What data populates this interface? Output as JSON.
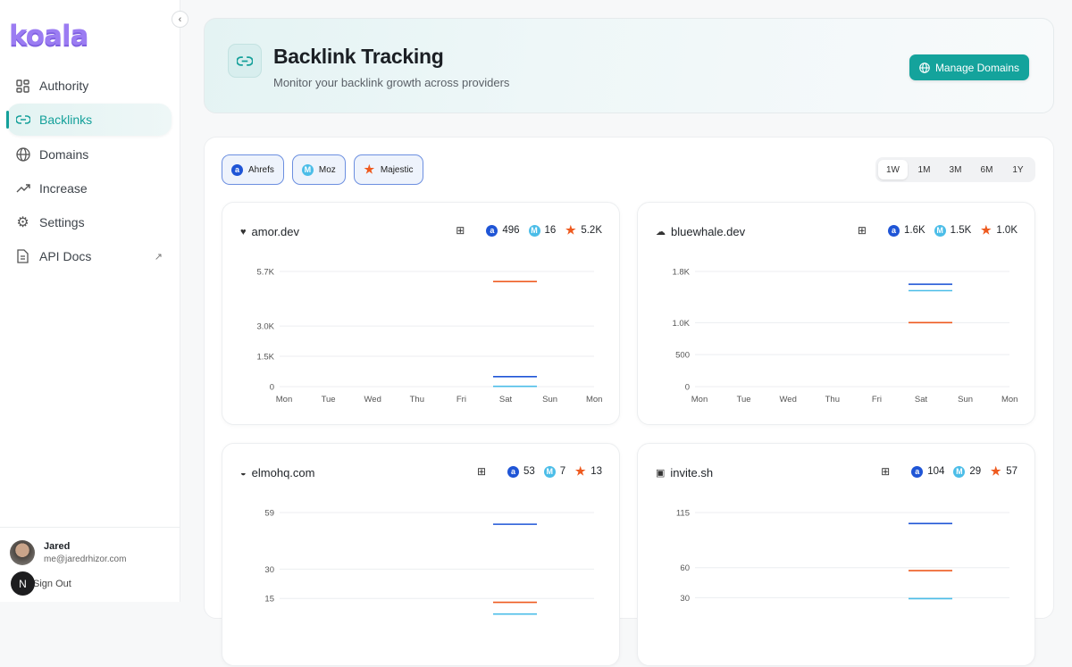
{
  "sidebar": {
    "logo": "koala",
    "items": [
      {
        "label": "Authority",
        "icon": "grid-icon"
      },
      {
        "label": "Backlinks",
        "icon": "link-icon",
        "active": true
      },
      {
        "label": "Domains",
        "icon": "globe-icon"
      },
      {
        "label": "Increase",
        "icon": "trending-up-icon"
      },
      {
        "label": "Settings",
        "icon": "gear-icon"
      },
      {
        "label": "API Docs",
        "icon": "document-icon",
        "external": true
      }
    ],
    "user": {
      "name": "Jared",
      "email": "me@jaredrhizor.com",
      "sign_out": "Sign Out",
      "badge": "N"
    }
  },
  "header": {
    "title": "Backlink Tracking",
    "subtitle": "Monitor your backlink growth across providers",
    "manage_label": "Manage Domains"
  },
  "providers": [
    {
      "label": "Ahrefs",
      "color": "#1f55d6"
    },
    {
      "label": "Moz",
      "color": "#4bbde8"
    },
    {
      "label": "Majestic",
      "color": "#ee5a1f"
    }
  ],
  "ranges": {
    "options": [
      "1W",
      "1M",
      "3M",
      "6M",
      "1Y"
    ],
    "selected": "1W"
  },
  "chart_data": [
    {
      "type": "line",
      "domain": "amor.dev",
      "stats": {
        "ahrefs": "496",
        "moz": "16",
        "majestic": "5.2K"
      },
      "x": [
        "Mon",
        "Tue",
        "Wed",
        "Thu",
        "Fri",
        "Sat",
        "Sun",
        "Mon"
      ],
      "yticks": [
        0,
        1500,
        3000,
        5700
      ],
      "ytick_labels": [
        "0",
        "1.5K",
        "3.0K",
        "5.7K"
      ],
      "ylim": [
        0,
        5700
      ],
      "series": [
        {
          "name": "Ahrefs",
          "color": "#1f55d6",
          "point": [
            "Sat",
            496
          ]
        },
        {
          "name": "Moz",
          "color": "#4bbde8",
          "point": [
            "Sat",
            16
          ]
        },
        {
          "name": "Majestic",
          "color": "#ee5a1f",
          "point": [
            "Sat",
            5200
          ]
        }
      ]
    },
    {
      "type": "line",
      "domain": "bluewhale.dev",
      "stats": {
        "ahrefs": "1.6K",
        "moz": "1.5K",
        "majestic": "1.0K"
      },
      "x": [
        "Mon",
        "Tue",
        "Wed",
        "Thu",
        "Fri",
        "Sat",
        "Sun",
        "Mon"
      ],
      "yticks": [
        0,
        500,
        1000,
        1800
      ],
      "ytick_labels": [
        "0",
        "500",
        "1.0K",
        "1.8K"
      ],
      "ylim": [
        0,
        1800
      ],
      "series": [
        {
          "name": "Ahrefs",
          "color": "#1f55d6",
          "point": [
            "Sat",
            1600
          ]
        },
        {
          "name": "Moz",
          "color": "#4bbde8",
          "point": [
            "Sat",
            1500
          ]
        },
        {
          "name": "Majestic",
          "color": "#ee5a1f",
          "point": [
            "Sat",
            1000
          ]
        }
      ]
    },
    {
      "type": "line",
      "domain": "elmohq.com",
      "stats": {
        "ahrefs": "53",
        "moz": "7",
        "majestic": "13"
      },
      "x": [],
      "yticks": [
        15,
        30,
        59
      ],
      "ytick_labels": [
        "15",
        "30",
        "59"
      ],
      "ylim": [
        0,
        59
      ],
      "series": [
        {
          "name": "Ahrefs",
          "color": "#1f55d6",
          "point": [
            "Sat",
            53
          ]
        },
        {
          "name": "Moz",
          "color": "#4bbde8",
          "point": [
            "Sat",
            7
          ]
        },
        {
          "name": "Majestic",
          "color": "#ee5a1f",
          "point": [
            "Sat",
            13
          ]
        }
      ]
    },
    {
      "type": "line",
      "domain": "invite.sh",
      "stats": {
        "ahrefs": "104",
        "moz": "29",
        "majestic": "57"
      },
      "x": [],
      "yticks": [
        30,
        60,
        115
      ],
      "ytick_labels": [
        "30",
        "60",
        "115"
      ],
      "ylim": [
        0,
        115
      ],
      "series": [
        {
          "name": "Ahrefs",
          "color": "#1f55d6",
          "point": [
            "Sat",
            104
          ]
        },
        {
          "name": "Moz",
          "color": "#4bbde8",
          "point": [
            "Sat",
            29
          ]
        },
        {
          "name": "Majestic",
          "color": "#ee5a1f",
          "point": [
            "Sat",
            57
          ]
        }
      ]
    }
  ]
}
